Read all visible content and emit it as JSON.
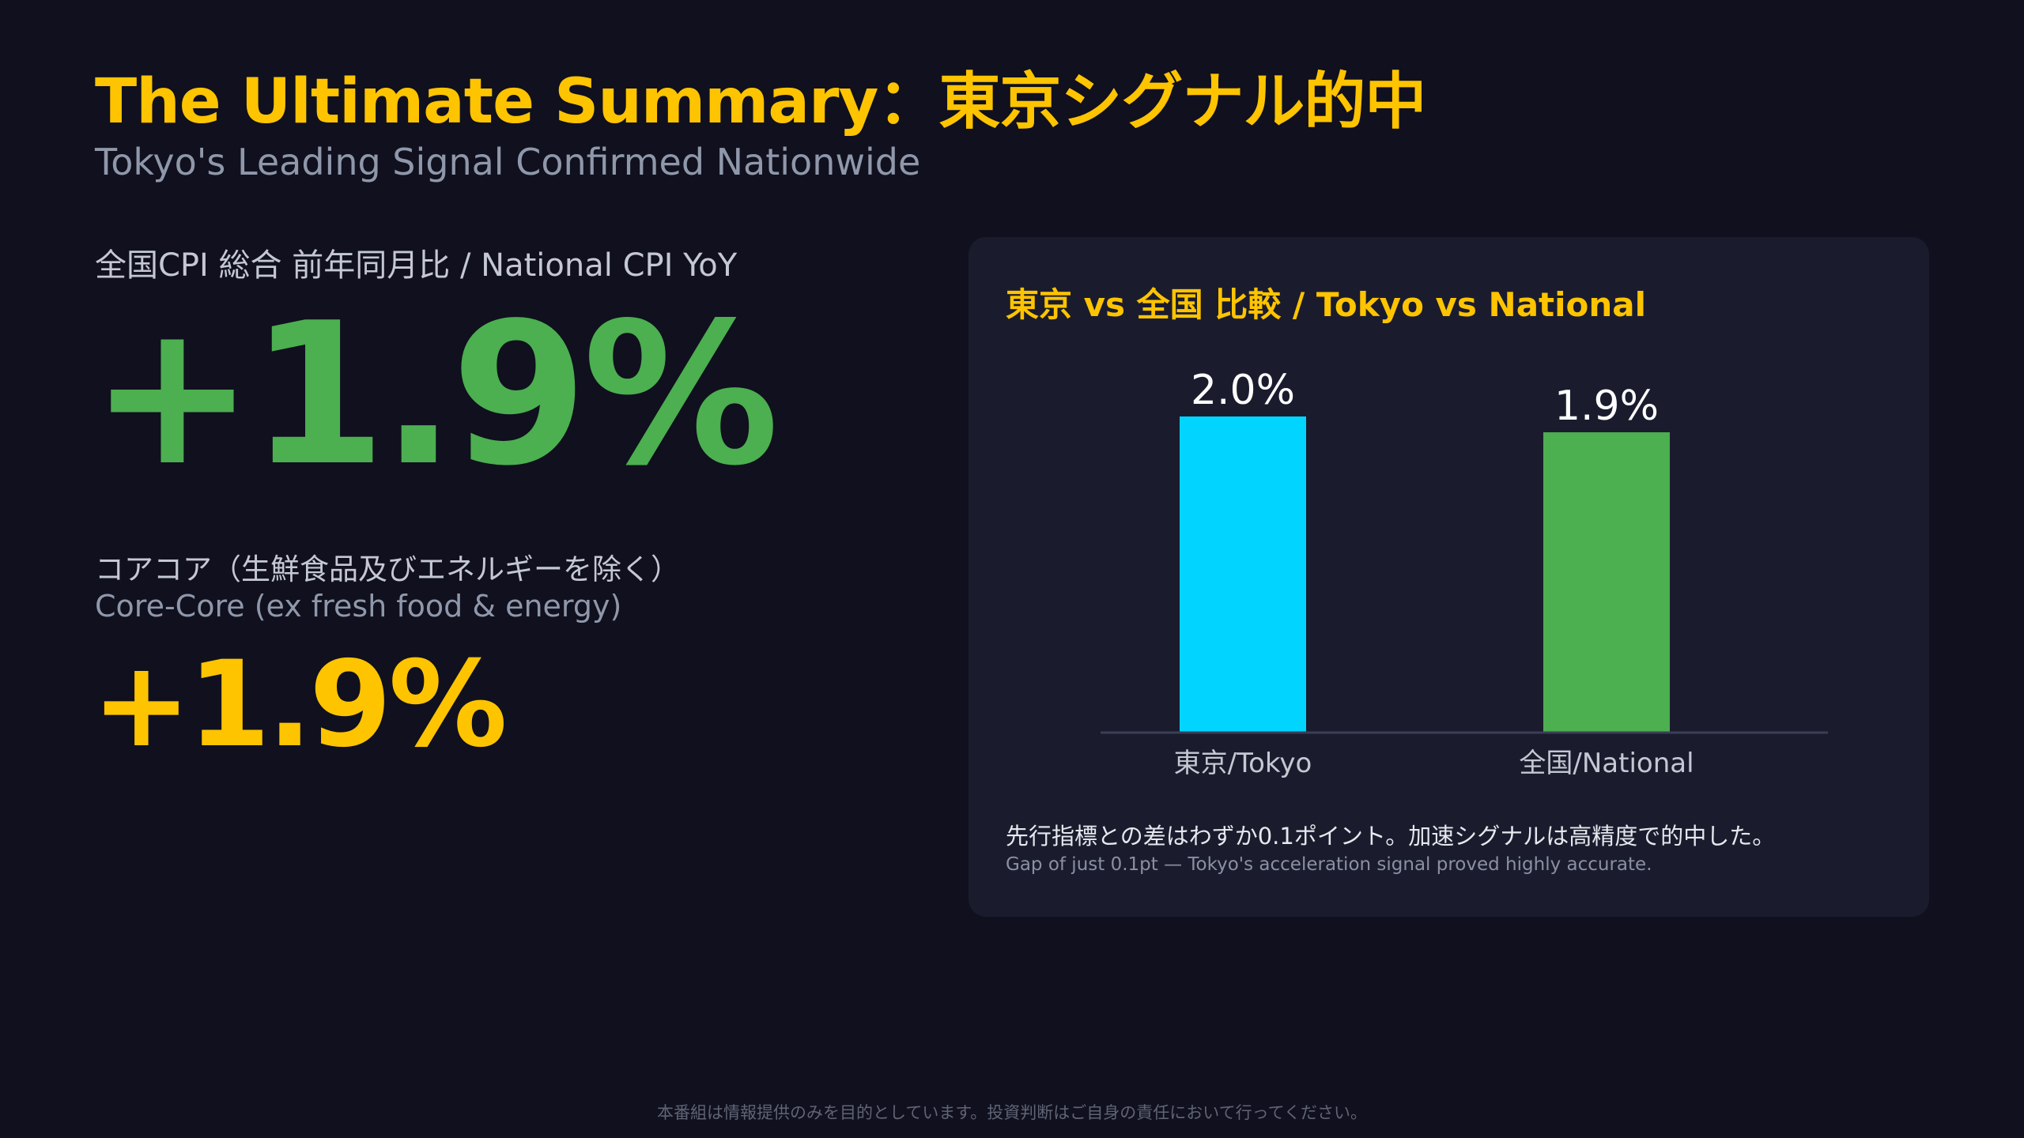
{
  "header": {
    "title": "The Ultimate Summary：東京シグナル的中",
    "subtitle": "Tokyo's Leading Signal Confirmed Nationwide"
  },
  "headline_metric": {
    "label": "全国CPI 総合 前年同月比 / National CPI YoY",
    "value": "+1.9%",
    "color": "#4caf50"
  },
  "core_metric": {
    "label_jp": "コアコア（生鮮食品及びエネルギーを除く）",
    "label_en": "Core-Core (ex fresh food & energy)",
    "value": "+1.9%",
    "color": "#ffc400"
  },
  "comparison_card": {
    "title": "東京 vs 全国 比較 / Tokyo vs National",
    "note_jp": "先行指標との差はわずか0.1ポイント。加速シグナルは高精度で的中した。",
    "note_en": "Gap of just 0.1pt — Tokyo's acceleration signal proved highly accurate."
  },
  "chart_data": {
    "type": "bar",
    "title": "東京 vs 全国 比較 / Tokyo vs National",
    "categories": [
      "東京/Tokyo",
      "全国/National"
    ],
    "values": [
      2.0,
      1.9
    ],
    "value_labels": [
      "2.0%",
      "1.9%"
    ],
    "colors": [
      "#00d4ff",
      "#4caf50"
    ],
    "ylim": [
      0,
      2.0
    ],
    "grid": false,
    "legend": "none",
    "xlabel": "",
    "ylabel": ""
  },
  "footer": {
    "disclaimer": "本番組は情報提供のみを目的としています。投資判断はご自身の責任において行ってください。"
  },
  "theme": {
    "background": "#10101e",
    "card_background": "#1a1c2e",
    "accent_yellow": "#ffc400",
    "accent_green": "#4caf50",
    "accent_cyan": "#00d4ff",
    "axis_color": "#3a3e58"
  }
}
